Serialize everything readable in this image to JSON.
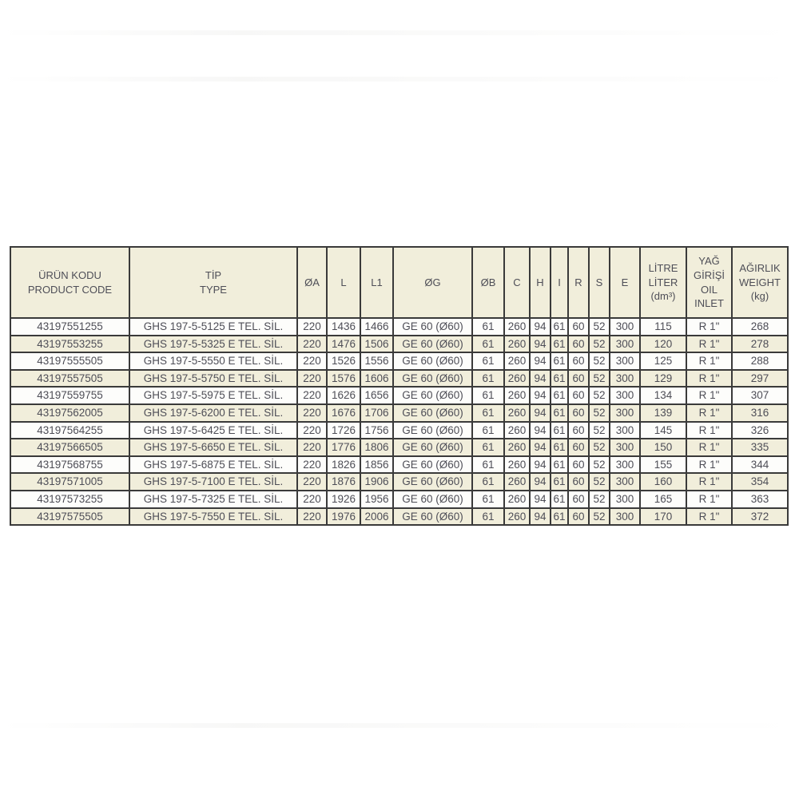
{
  "colors": {
    "header_bg": "#f1eedb",
    "row_bg": "#fdfdfb",
    "row_alt_bg": "#f1eedb",
    "border": "#3a3a3a",
    "text": "#4e4e57"
  },
  "table": {
    "columns": [
      {
        "id": "product-code",
        "lines": [
          "ÜRÜN KODU",
          "PRODUCT CODE"
        ]
      },
      {
        "id": "type",
        "lines": [
          "TİP",
          "TYPE"
        ]
      },
      {
        "id": "oa",
        "lines": [
          "ØA"
        ]
      },
      {
        "id": "l",
        "lines": [
          "L"
        ]
      },
      {
        "id": "l1",
        "lines": [
          "L1"
        ]
      },
      {
        "id": "og",
        "lines": [
          "ØG"
        ]
      },
      {
        "id": "ob",
        "lines": [
          "ØB"
        ]
      },
      {
        "id": "c",
        "lines": [
          "C"
        ]
      },
      {
        "id": "h",
        "lines": [
          "H"
        ]
      },
      {
        "id": "i",
        "lines": [
          "I"
        ]
      },
      {
        "id": "r",
        "lines": [
          "R"
        ]
      },
      {
        "id": "s",
        "lines": [
          "S"
        ]
      },
      {
        "id": "e",
        "lines": [
          "E"
        ]
      },
      {
        "id": "litre",
        "lines": [
          "LİTRE",
          "LİTER",
          "(dm³)"
        ]
      },
      {
        "id": "oil-inlet",
        "lines": [
          "YAĞ",
          "GİRİŞİ",
          "OIL",
          "INLET"
        ]
      },
      {
        "id": "weight",
        "lines": [
          "AĞIRLIK",
          "WEIGHT",
          "(kg)"
        ]
      }
    ],
    "rows": [
      [
        "43197551255",
        "GHS 197-5-5125 E TEL. SİL.",
        "220",
        "1436",
        "1466",
        "GE 60 (Ø60)",
        "61",
        "260",
        "94",
        "61",
        "60",
        "52",
        "300",
        "115",
        "R 1\"",
        "268"
      ],
      [
        "43197553255",
        "GHS 197-5-5325 E TEL. SİL.",
        "220",
        "1476",
        "1506",
        "GE 60 (Ø60)",
        "61",
        "260",
        "94",
        "61",
        "60",
        "52",
        "300",
        "120",
        "R 1\"",
        "278"
      ],
      [
        "43197555505",
        "GHS 197-5-5550 E TEL. SİL.",
        "220",
        "1526",
        "1556",
        "GE 60 (Ø60)",
        "61",
        "260",
        "94",
        "61",
        "60",
        "52",
        "300",
        "125",
        "R 1\"",
        "288"
      ],
      [
        "43197557505",
        "GHS 197-5-5750 E TEL. SİL.",
        "220",
        "1576",
        "1606",
        "GE 60 (Ø60)",
        "61",
        "260",
        "94",
        "61",
        "60",
        "52",
        "300",
        "129",
        "R 1\"",
        "297"
      ],
      [
        "43197559755",
        "GHS 197-5-5975 E TEL. SİL.",
        "220",
        "1626",
        "1656",
        "GE 60 (Ø60)",
        "61",
        "260",
        "94",
        "61",
        "60",
        "52",
        "300",
        "134",
        "R 1\"",
        "307"
      ],
      [
        "43197562005",
        "GHS 197-5-6200 E TEL. SİL.",
        "220",
        "1676",
        "1706",
        "GE 60 (Ø60)",
        "61",
        "260",
        "94",
        "61",
        "60",
        "52",
        "300",
        "139",
        "R 1\"",
        "316"
      ],
      [
        "43197564255",
        "GHS 197-5-6425 E TEL. SİL.",
        "220",
        "1726",
        "1756",
        "GE 60 (Ø60)",
        "61",
        "260",
        "94",
        "61",
        "60",
        "52",
        "300",
        "145",
        "R 1\"",
        "326"
      ],
      [
        "43197566505",
        "GHS 197-5-6650 E TEL. SİL.",
        "220",
        "1776",
        "1806",
        "GE 60 (Ø60)",
        "61",
        "260",
        "94",
        "61",
        "60",
        "52",
        "300",
        "150",
        "R 1\"",
        "335"
      ],
      [
        "43197568755",
        "GHS 197-5-6875 E TEL. SİL.",
        "220",
        "1826",
        "1856",
        "GE 60 (Ø60)",
        "61",
        "260",
        "94",
        "61",
        "60",
        "52",
        "300",
        "155",
        "R 1\"",
        "344"
      ],
      [
        "43197571005",
        "GHS 197-5-7100 E TEL. SİL.",
        "220",
        "1876",
        "1906",
        "GE 60 (Ø60)",
        "61",
        "260",
        "94",
        "61",
        "60",
        "52",
        "300",
        "160",
        "R 1\"",
        "354"
      ],
      [
        "43197573255",
        "GHS 197-5-7325 E TEL. SİL.",
        "220",
        "1926",
        "1956",
        "GE 60 (Ø60)",
        "61",
        "260",
        "94",
        "61",
        "60",
        "52",
        "300",
        "165",
        "R 1\"",
        "363"
      ],
      [
        "43197575505",
        "GHS 197-5-7550 E TEL. SİL.",
        "220",
        "1976",
        "2006",
        "GE 60 (Ø60)",
        "61",
        "260",
        "94",
        "61",
        "60",
        "52",
        "300",
        "170",
        "R 1\"",
        "372"
      ]
    ]
  }
}
